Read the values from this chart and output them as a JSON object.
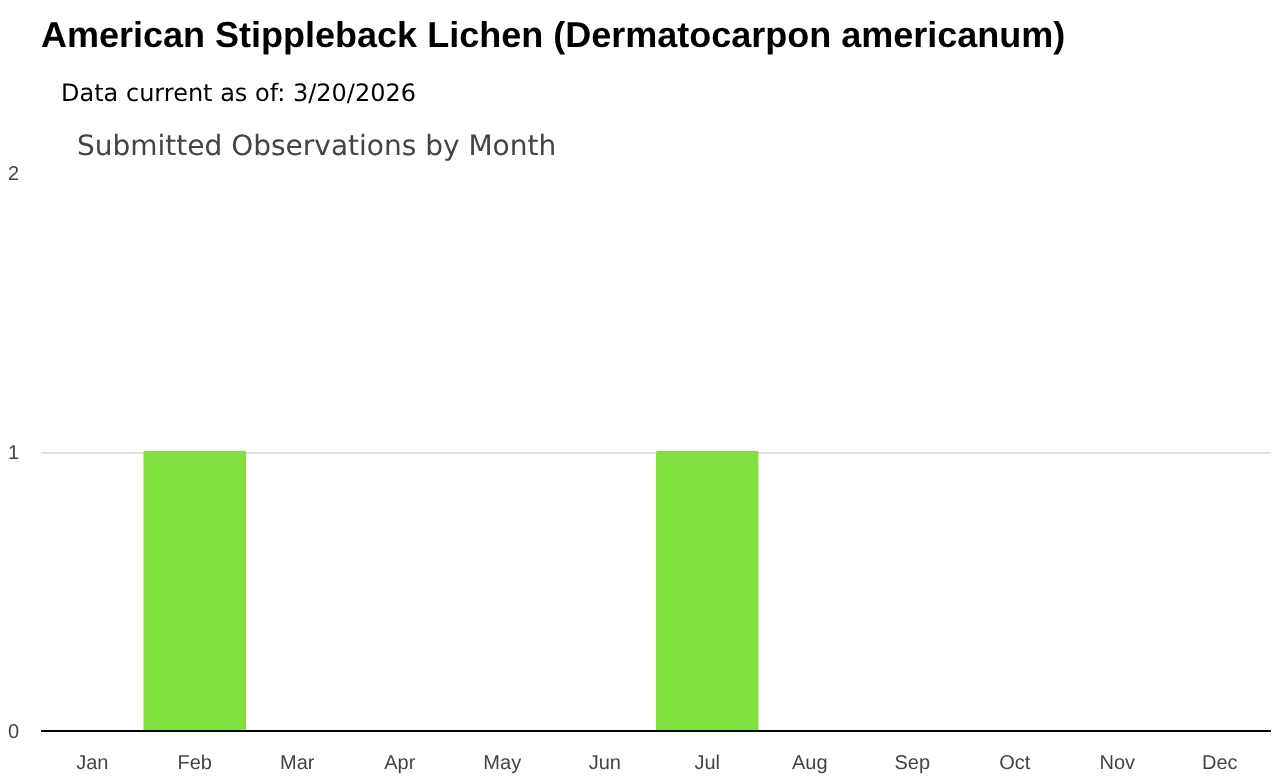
{
  "chart_data": {
    "type": "bar",
    "title": "American Stippleback Lichen   (Dermatocarpon americanum)",
    "subtitle": "Data current as of: 3/20/2026",
    "annotations": [
      "Submitted Observations by Month"
    ],
    "categories": [
      "Jan",
      "Feb",
      "Mar",
      "Apr",
      "May",
      "Jun",
      "Jul",
      "Aug",
      "Sep",
      "Oct",
      "Nov",
      "Dec"
    ],
    "values": [
      0,
      1,
      0,
      0,
      0,
      0,
      1,
      0,
      0,
      0,
      0,
      0
    ],
    "color": "#80e040",
    "ylim": [
      0,
      2
    ],
    "yticks": [
      0,
      1,
      2
    ],
    "grid": "y"
  }
}
